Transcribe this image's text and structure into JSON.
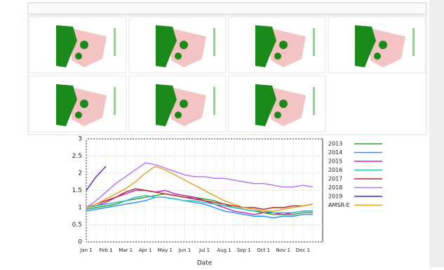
{
  "chart_data": {
    "type": "line",
    "categories": [
      "Jan 1",
      null,
      "Feb 1",
      null,
      "Mar 1",
      null,
      "Apr 1",
      null,
      "May 1",
      null,
      "Jun 1",
      null,
      "Jul 1",
      null,
      "Aug 1",
      null,
      "Sep 1",
      null,
      "Oct 1",
      null,
      "Nov 1",
      null,
      "Dec 1",
      null
    ],
    "x_label": "Date",
    "ylim": [
      0,
      3
    ],
    "yticks": [
      0,
      0.5,
      1,
      1.5,
      2,
      2.5,
      3
    ],
    "grid": true,
    "series": [
      {
        "name": "2013",
        "color": "#2ca02c",
        "values": [
          0.95,
          1.0,
          1.05,
          1.1,
          1.2,
          1.25,
          1.3,
          1.35,
          1.4,
          1.35,
          1.3,
          1.3,
          1.25,
          1.2,
          1.1,
          1.0,
          0.95,
          0.9,
          0.85,
          0.8,
          0.8,
          0.8,
          0.85,
          0.85
        ]
      },
      {
        "name": "2014",
        "color": "#1f8fff",
        "values": [
          0.9,
          0.95,
          1.0,
          1.05,
          1.1,
          1.15,
          1.2,
          1.3,
          1.3,
          1.25,
          1.2,
          1.15,
          1.1,
          1.0,
          0.9,
          0.85,
          0.8,
          0.75,
          0.75,
          0.7,
          0.75,
          0.75,
          0.8,
          0.8
        ]
      },
      {
        "name": "2015",
        "color": "#c020c0",
        "values": [
          1.0,
          1.05,
          1.15,
          1.3,
          1.4,
          1.5,
          1.5,
          1.45,
          1.5,
          1.4,
          1.35,
          1.3,
          1.2,
          1.1,
          1.0,
          0.9,
          0.85,
          0.8,
          0.85,
          0.85,
          0.8,
          0.85,
          0.9,
          0.9
        ]
      },
      {
        "name": "2016",
        "color": "#20c0c0",
        "values": [
          1.0,
          1.05,
          1.1,
          1.15,
          1.2,
          1.3,
          1.35,
          1.3,
          1.3,
          1.25,
          1.2,
          1.2,
          1.15,
          1.1,
          1.05,
          1.0,
          0.95,
          0.9,
          0.9,
          0.85,
          0.85,
          0.85,
          0.9,
          0.9
        ]
      },
      {
        "name": "2017",
        "color": "#c02020",
        "values": [
          1.0,
          1.1,
          1.2,
          1.3,
          1.45,
          1.55,
          1.5,
          1.45,
          1.4,
          1.35,
          1.3,
          1.25,
          1.2,
          1.15,
          1.1,
          1.05,
          1.0,
          1.0,
          0.95,
          1.0,
          1.0,
          1.05,
          1.05,
          1.1
        ]
      },
      {
        "name": "2018",
        "color": "#b070ff",
        "values": [
          1.0,
          1.2,
          1.45,
          1.7,
          1.9,
          2.1,
          2.3,
          2.25,
          2.15,
          2.05,
          1.95,
          1.9,
          1.9,
          1.85,
          1.85,
          1.8,
          1.75,
          1.7,
          1.7,
          1.65,
          1.6,
          1.6,
          1.65,
          1.6
        ]
      },
      {
        "name": "2019",
        "color": "#3030c0",
        "values": [
          1.5,
          1.9,
          2.2,
          null,
          null,
          null,
          null,
          null,
          null,
          null,
          null,
          null,
          null,
          null,
          null,
          null,
          null,
          null,
          null,
          null,
          null,
          null,
          null,
          null
        ]
      },
      {
        "name": "AMSR-E",
        "color": "#e0a020",
        "values": [
          1.0,
          1.1,
          1.25,
          1.4,
          1.55,
          1.75,
          2.0,
          2.2,
          2.1,
          1.95,
          1.8,
          1.65,
          1.5,
          1.35,
          1.2,
          1.1,
          1.0,
          0.95,
          0.9,
          0.9,
          0.95,
          1.0,
          1.05,
          1.1
        ]
      }
    ]
  }
}
